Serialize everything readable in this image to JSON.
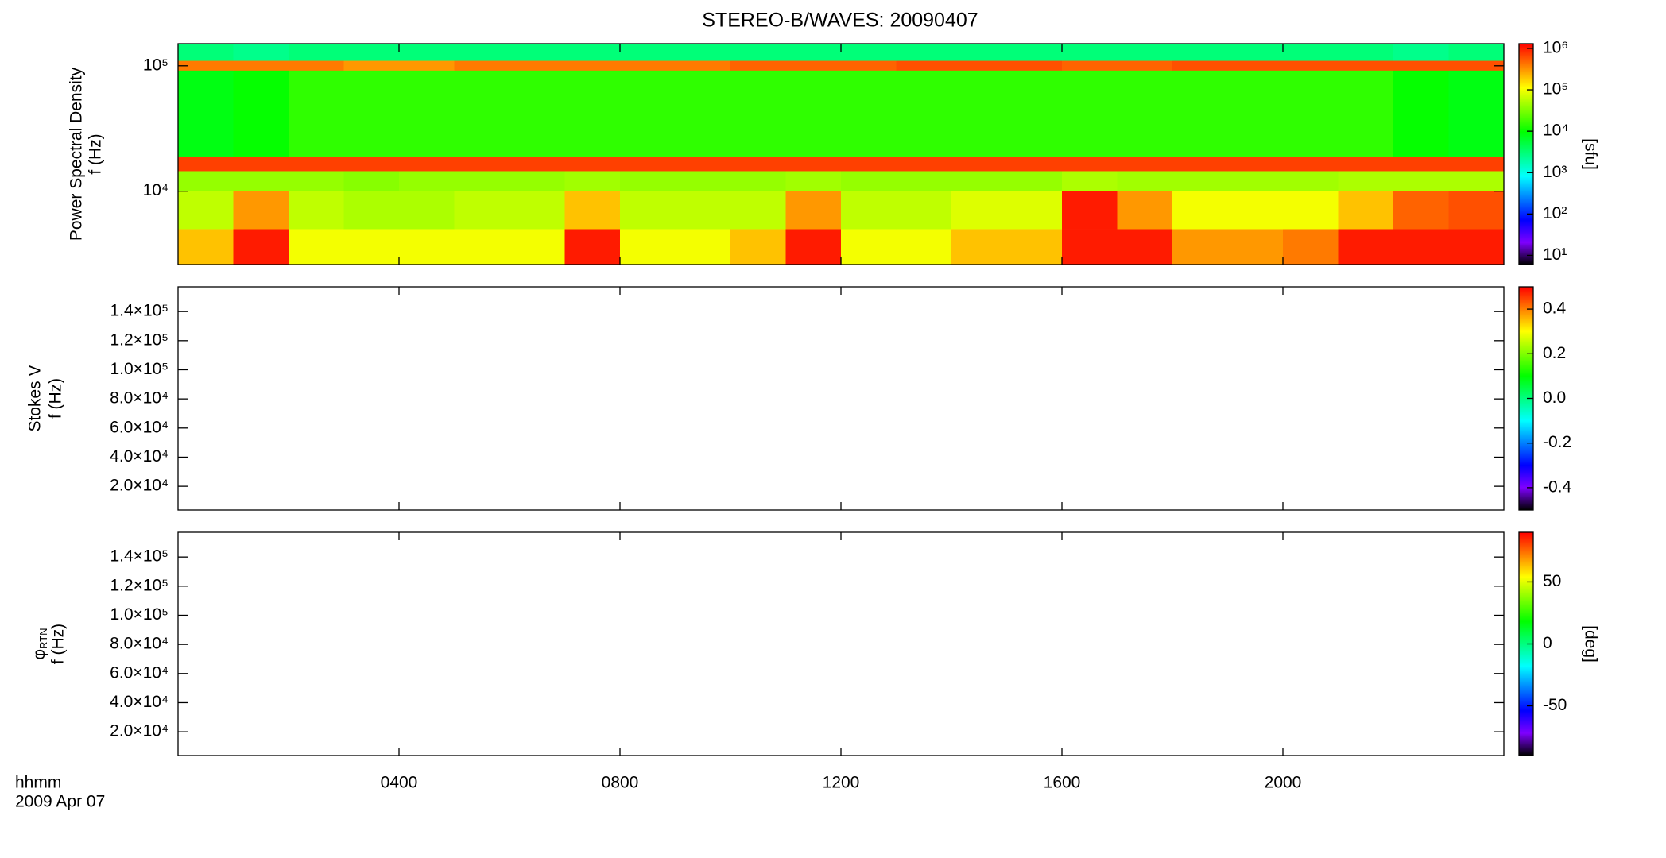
{
  "chart_data": [
    {
      "type": "heatmap",
      "title": "STEREO-B/WAVES: 20090407",
      "ylabel": [
        "Power Spectral Density",
        "f (Hz)"
      ],
      "ylim": [
        2600,
        150000
      ],
      "ylog": true,
      "yticks": [
        {
          "value": 10000,
          "label": "10⁴"
        },
        {
          "value": 100000,
          "label": "10⁵"
        }
      ],
      "x_edges": [
        0,
        1,
        2,
        3,
        4,
        5,
        6,
        7,
        8,
        9,
        10,
        11,
        12,
        13,
        14,
        15,
        16,
        17,
        18,
        19,
        20,
        21,
        22,
        23,
        24
      ],
      "y_edges": [
        2600,
        5000,
        10000,
        14500,
        19000,
        92000,
        110000,
        150000
      ],
      "z": [
        [
          200000,
          1000000,
          100000,
          100000,
          100000,
          100000,
          100000,
          1000000,
          100000,
          100000,
          200000,
          1000000,
          100000,
          100000,
          200000,
          200000,
          1000000,
          1000000,
          300000,
          300000,
          400000,
          1000000,
          1000000,
          1000000
        ],
        [
          60000,
          300000,
          60000,
          50000,
          50000,
          60000,
          60000,
          200000,
          60000,
          60000,
          60000,
          300000,
          60000,
          60000,
          80000,
          80000,
          1000000,
          300000,
          100000,
          100000,
          100000,
          200000,
          500000,
          600000
        ],
        [
          40000,
          40000,
          40000,
          35000,
          40000,
          40000,
          40000,
          45000,
          40000,
          40000,
          40000,
          45000,
          40000,
          40000,
          40000,
          40000,
          50000,
          45000,
          45000,
          45000,
          45000,
          50000,
          50000,
          50000
        ],
        [
          700000,
          700000,
          700000,
          700000,
          700000,
          700000,
          700000,
          700000,
          700000,
          700000,
          700000,
          700000,
          700000,
          700000,
          700000,
          700000,
          700000,
          700000,
          700000,
          700000,
          700000,
          700000,
          700000,
          700000
        ],
        [
          8000,
          10000,
          15000,
          15000,
          15000,
          15000,
          15000,
          15000,
          15000,
          15000,
          15000,
          15000,
          15000,
          15000,
          15000,
          15000,
          15000,
          15000,
          15000,
          15000,
          15000,
          15000,
          10000,
          8000
        ],
        [
          400000,
          400000,
          400000,
          300000,
          300000,
          400000,
          400000,
          400000,
          400000,
          400000,
          500000,
          500000,
          500000,
          600000,
          600000,
          600000,
          500000,
          500000,
          600000,
          600000,
          600000,
          600000,
          600000,
          600000
        ],
        [
          3000,
          2500,
          3000,
          3000,
          3000,
          3000,
          3000,
          3000,
          3000,
          3000,
          3000,
          3000,
          3000,
          3000,
          3000,
          3000,
          3000,
          3000,
          3000,
          3000,
          3000,
          3000,
          2500,
          3000
        ]
      ],
      "clim": [
        6,
        1300000
      ],
      "clog": true,
      "cticks": [
        {
          "value": 10,
          "label": "10¹"
        },
        {
          "value": 100,
          "label": "10²"
        },
        {
          "value": 1000,
          "label": "10³"
        },
        {
          "value": 10000,
          "label": "10⁴"
        },
        {
          "value": 100000,
          "label": "10⁵"
        },
        {
          "value": 1000000,
          "label": "10⁶"
        }
      ],
      "clabel": "[sfu]",
      "colorscale": [
        [
          0,
          "#000000"
        ],
        [
          0.1,
          "#7f00ff"
        ],
        [
          0.2,
          "#0000ff"
        ],
        [
          0.4,
          "#00ffff"
        ],
        [
          0.6,
          "#00ff00"
        ],
        [
          0.8,
          "#ffff00"
        ],
        [
          1,
          "#ff0000"
        ]
      ]
    },
    {
      "type": "heatmap",
      "ylabel": [
        "Stokes V",
        "f (Hz)"
      ],
      "ylim": [
        3700,
        157000
      ],
      "ylog": false,
      "yticks": [
        {
          "value": 20000,
          "label": "2.0×10⁴"
        },
        {
          "value": 40000,
          "label": "4.0×10⁴"
        },
        {
          "value": 60000,
          "label": "6.0×10⁴"
        },
        {
          "value": 80000,
          "label": "8.0×10⁴"
        },
        {
          "value": 100000,
          "label": "1.0×10⁵"
        },
        {
          "value": 120000,
          "label": "1.2×10⁵"
        },
        {
          "value": 140000,
          "label": "1.4×10⁵"
        }
      ],
      "clim": [
        -0.5,
        0.5
      ],
      "clog": false,
      "cticks": [
        -0.4,
        -0.2,
        {
          "value": 0,
          "label": "0.0"
        },
        0.2,
        0.4
      ],
      "colorscale": [
        [
          0,
          "#000000"
        ],
        [
          0.1,
          "#7f00ff"
        ],
        [
          0.2,
          "#0000ff"
        ],
        [
          0.4,
          "#00ffff"
        ],
        [
          0.6,
          "#00ff00"
        ],
        [
          0.8,
          "#ffff00"
        ],
        [
          1,
          "#ff0000"
        ]
      ]
    },
    {
      "type": "heatmap",
      "ylabel_symbol": "φ",
      "ylabel_subscript": "RTN",
      "ylabel": [
        "f (Hz)"
      ],
      "ylim": [
        3700,
        157000
      ],
      "ylog": false,
      "yticks": [
        {
          "value": 20000,
          "label": "2.0×10⁴"
        },
        {
          "value": 40000,
          "label": "4.0×10⁴"
        },
        {
          "value": 60000,
          "label": "6.0×10⁴"
        },
        {
          "value": 80000,
          "label": "8.0×10⁴"
        },
        {
          "value": 100000,
          "label": "1.0×10⁵"
        },
        {
          "value": 120000,
          "label": "1.2×10⁵"
        },
        {
          "value": 140000,
          "label": "1.4×10⁵"
        }
      ],
      "clim": [
        -90,
        90
      ],
      "clog": false,
      "cticks": [
        -50,
        0,
        50
      ],
      "clabel": "[deg]",
      "colorscale": [
        [
          0,
          "#000000"
        ],
        [
          0.1,
          "#7f00ff"
        ],
        [
          0.2,
          "#0000ff"
        ],
        [
          0.4,
          "#00ffff"
        ],
        [
          0.6,
          "#00ff00"
        ],
        [
          0.8,
          "#ffff00"
        ],
        [
          1,
          "#ff0000"
        ]
      ],
      "xlim": [
        0,
        24
      ],
      "xticks": [
        {
          "value": 4,
          "label": "0400"
        },
        {
          "value": 8,
          "label": "0800"
        },
        {
          "value": 12,
          "label": "1200"
        },
        {
          "value": 16,
          "label": "1600"
        },
        {
          "value": 20,
          "label": "2000"
        }
      ],
      "xlabel": "hhmm",
      "date": "2009 Apr 07"
    }
  ]
}
